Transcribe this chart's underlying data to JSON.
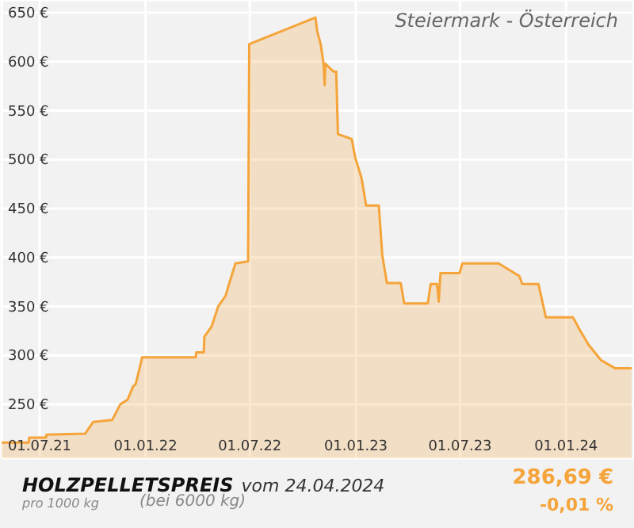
{
  "chart_data": {
    "type": "area",
    "title": "HOLZPELLETSPREIS",
    "subtitle": "vom 24.04.2024",
    "annotations": [
      "Steiermark - Österreich",
      "pro 1000 kg",
      "(bei 6000 kg)",
      "286,69 €",
      "-0,01 %"
    ],
    "x": [
      "2021-04-26",
      "2021-06-12",
      "2021-06-13",
      "2021-07-12",
      "2021-07-13",
      "2021-09-18",
      "2021-10-02",
      "2021-11-04",
      "2021-11-18",
      "2021-12-01",
      "2021-12-10",
      "2021-12-15",
      "2021-12-26",
      "2022-03-29",
      "2022-03-30",
      "2022-04-12",
      "2022-04-13",
      "2022-04-26",
      "2022-05-07",
      "2022-05-20",
      "2022-05-26",
      "2022-06-06",
      "2022-06-28",
      "2022-06-30",
      "2022-10-23",
      "2022-10-26",
      "2022-11-01",
      "2022-11-06",
      "2022-11-08",
      "2022-11-09",
      "2022-11-23",
      "2022-11-28",
      "2022-12-01",
      "2022-12-25",
      "2022-12-31",
      "2023-01-11",
      "2023-01-19",
      "2023-02-10",
      "2023-02-16",
      "2023-02-24",
      "2023-03-20",
      "2023-03-26",
      "2023-05-06",
      "2023-05-11",
      "2023-05-22",
      "2023-05-25",
      "2023-05-28",
      "2023-06-30",
      "2023-07-05",
      "2023-09-06",
      "2023-10-12",
      "2023-10-17",
      "2023-11-14",
      "2023-11-27",
      "2024-01-13",
      "2024-01-24",
      "2024-02-09",
      "2024-03-02",
      "2024-03-26",
      "2024-04-24"
    ],
    "series": [
      {
        "color": "#f5a43a",
        "values": [
          211,
          211,
          216,
          216,
          219,
          220,
          232,
          234,
          250,
          255,
          268,
          271,
          298,
          298,
          303,
          303,
          319,
          330,
          350,
          361,
          373,
          394,
          396,
          618,
          645,
          631,
          618,
          598,
          576,
          598,
          590,
          590,
          526,
          521,
          502,
          481,
          453,
          453,
          402,
          374,
          374,
          353,
          353,
          373,
          373,
          355,
          384,
          384,
          394,
          394,
          381,
          373,
          373,
          339,
          339,
          327,
          311,
          295,
          287,
          287
        ]
      }
    ],
    "xlim": [
      "2021-04-26",
      "2024-04-28"
    ],
    "xticks": [
      {
        "value": "2021-07-01",
        "label": "01.07.21"
      },
      {
        "value": "2022-01-01",
        "label": "01.01.22"
      },
      {
        "value": "2022-07-01",
        "label": "01.07.22"
      },
      {
        "value": "2023-01-01",
        "label": "01.01.23"
      },
      {
        "value": "2023-07-01",
        "label": "01.07.23"
      },
      {
        "value": "2024-01-01",
        "label": "01.01.24"
      }
    ],
    "ylim": [
      195,
      663
    ],
    "yticks": [
      {
        "value": 250,
        "label": "250 €"
      },
      {
        "value": 300,
        "label": "300 €"
      },
      {
        "value": 350,
        "label": "350 €"
      },
      {
        "value": 400,
        "label": "400 €"
      },
      {
        "value": 450,
        "label": "450 €"
      },
      {
        "value": 500,
        "label": "500 €"
      },
      {
        "value": 550,
        "label": "550 €"
      },
      {
        "value": 600,
        "label": "600 €"
      },
      {
        "value": 650,
        "label": "650 €"
      }
    ],
    "grid": true,
    "legend": false
  }
}
